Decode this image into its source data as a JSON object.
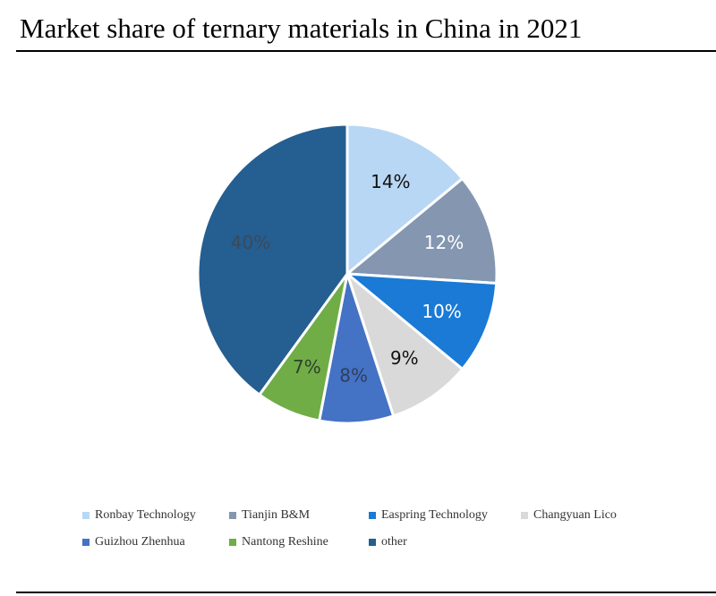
{
  "chart_data": {
    "type": "pie",
    "title": "Market share of ternary materials in China in 2021",
    "categories": [
      "Ronbay Technology",
      "Tianjin B&M",
      "Easpring Technology",
      "Changyuan Lico",
      "Guizhou Zhenhua",
      "Nantong Reshine",
      "other"
    ],
    "values": [
      14,
      12,
      10,
      9,
      8,
      7,
      40
    ],
    "labels": [
      "14%",
      "12%",
      "10%",
      "9%",
      "8%",
      "7%",
      "40%"
    ],
    "colors": [
      "#b8d7f4",
      "#8496b0",
      "#1a7ad6",
      "#d9d9d9",
      "#4472c4",
      "#70ad47",
      "#255e91"
    ],
    "label_colors": [
      "#111111",
      "#ffffff",
      "#ffffff",
      "#111111",
      "#2f3f5f",
      "#2f3f2f",
      "#3a4a5a"
    ],
    "legend_position": "bottom"
  }
}
